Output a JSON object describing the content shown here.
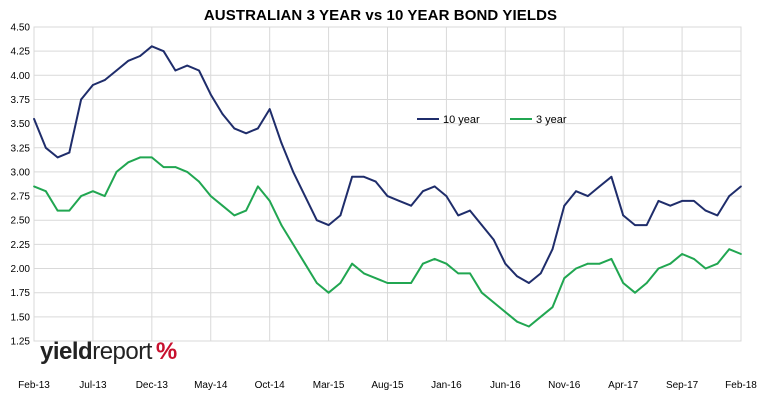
{
  "chart_data": {
    "type": "line",
    "title": "AUSTRALIAN 3 YEAR vs 10 YEAR BOND YIELDS",
    "xlabel": "",
    "ylabel": "",
    "ylim": [
      1.25,
      4.5
    ],
    "yticks": [
      "1.25",
      "1.50",
      "1.75",
      "2.00",
      "2.25",
      "2.50",
      "2.75",
      "3.00",
      "3.25",
      "3.50",
      "3.75",
      "4.00",
      "4.25",
      "4.50"
    ],
    "xticks": [
      "Feb-13",
      "Jul-13",
      "Dec-13",
      "May-14",
      "Oct-14",
      "Mar-15",
      "Aug-15",
      "Jan-16",
      "Jun-16",
      "Nov-16",
      "Apr-17",
      "Sep-17",
      "Feb-18"
    ],
    "grid": true,
    "legend_position": "upper-right",
    "x": [
      "Feb-13",
      "Mar-13",
      "Apr-13",
      "May-13",
      "Jun-13",
      "Jul-13",
      "Aug-13",
      "Sep-13",
      "Oct-13",
      "Nov-13",
      "Dec-13",
      "Jan-14",
      "Feb-14",
      "Mar-14",
      "Apr-14",
      "May-14",
      "Jun-14",
      "Jul-14",
      "Aug-14",
      "Sep-14",
      "Oct-14",
      "Nov-14",
      "Dec-14",
      "Jan-15",
      "Feb-15",
      "Mar-15",
      "Apr-15",
      "May-15",
      "Jun-15",
      "Jul-15",
      "Aug-15",
      "Sep-15",
      "Oct-15",
      "Nov-15",
      "Dec-15",
      "Jan-16",
      "Feb-16",
      "Mar-16",
      "Apr-16",
      "May-16",
      "Jun-16",
      "Jul-16",
      "Aug-16",
      "Sep-16",
      "Oct-16",
      "Nov-16",
      "Dec-16",
      "Jan-17",
      "Feb-17",
      "Mar-17",
      "Apr-17",
      "May-17",
      "Jun-17",
      "Jul-17",
      "Aug-17",
      "Sep-17",
      "Oct-17",
      "Nov-17",
      "Dec-17",
      "Jan-18",
      "Feb-18"
    ],
    "series": [
      {
        "name": "10 year",
        "color": "#1f2d6b",
        "values": [
          3.55,
          3.25,
          3.15,
          3.2,
          3.75,
          3.9,
          3.95,
          4.05,
          4.15,
          4.2,
          4.3,
          4.25,
          4.05,
          4.1,
          4.05,
          3.8,
          3.6,
          3.45,
          3.4,
          3.45,
          3.65,
          3.3,
          3.0,
          2.75,
          2.5,
          2.45,
          2.55,
          2.95,
          2.95,
          2.9,
          2.75,
          2.7,
          2.65,
          2.8,
          2.85,
          2.75,
          2.55,
          2.6,
          2.45,
          2.3,
          2.05,
          1.92,
          1.85,
          1.95,
          2.2,
          2.65,
          2.8,
          2.75,
          2.85,
          2.95,
          2.55,
          2.45,
          2.45,
          2.7,
          2.65,
          2.7,
          2.7,
          2.6,
          2.55,
          2.75,
          2.85
        ]
      },
      {
        "name": "3 year",
        "color": "#21a651",
        "values": [
          2.85,
          2.8,
          2.6,
          2.6,
          2.75,
          2.8,
          2.75,
          3.0,
          3.1,
          3.15,
          3.15,
          3.05,
          3.05,
          3.0,
          2.9,
          2.75,
          2.65,
          2.55,
          2.6,
          2.85,
          2.7,
          2.45,
          2.25,
          2.05,
          1.85,
          1.75,
          1.85,
          2.05,
          1.95,
          1.9,
          1.85,
          1.85,
          1.85,
          2.05,
          2.1,
          2.05,
          1.95,
          1.95,
          1.75,
          1.65,
          1.55,
          1.45,
          1.4,
          1.5,
          1.6,
          1.9,
          2.0,
          2.05,
          2.05,
          2.1,
          1.85,
          1.75,
          1.85,
          2.0,
          2.05,
          2.15,
          2.1,
          2.0,
          2.05,
          2.2,
          2.15
        ]
      }
    ]
  },
  "logo": {
    "word1": "yield",
    "word2": "report",
    "symbol": "%"
  }
}
